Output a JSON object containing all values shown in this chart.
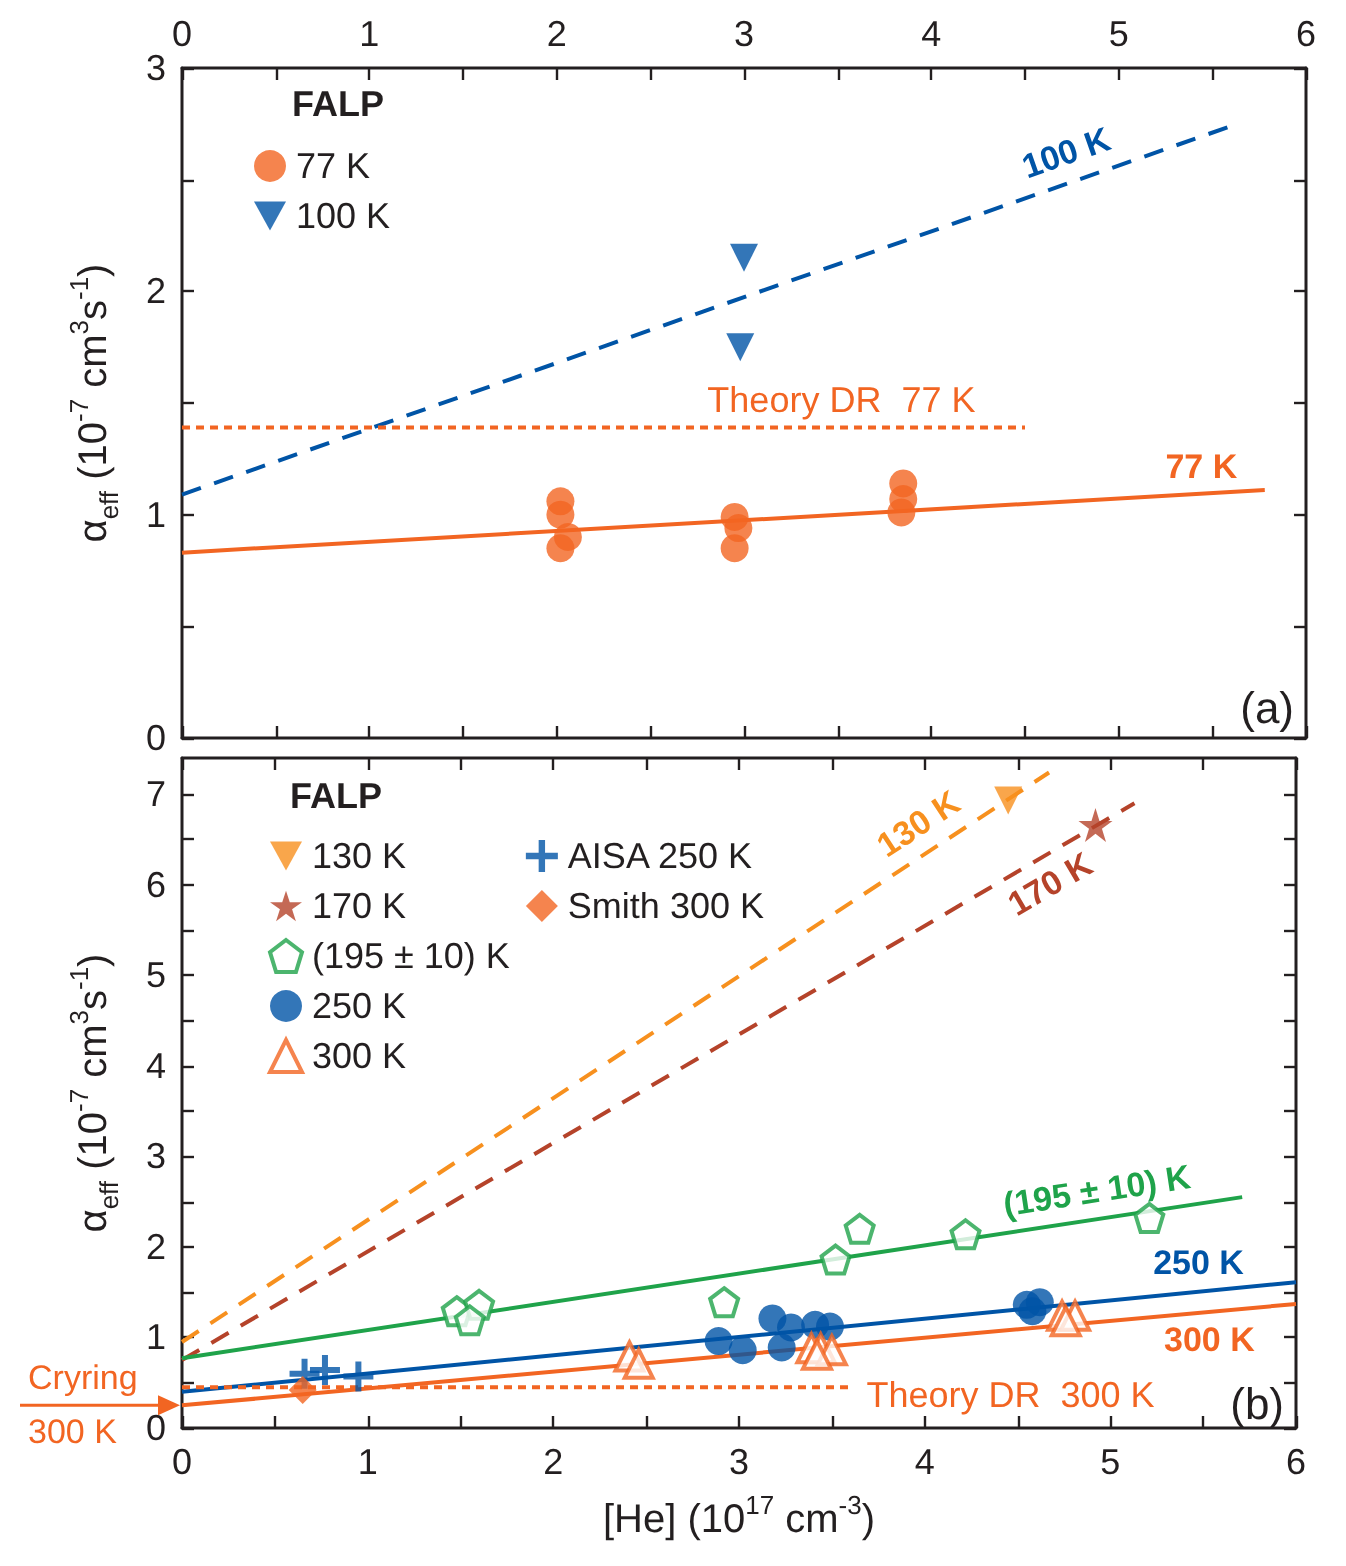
{
  "chart_data": [
    {
      "type": "scatter",
      "ylabel": "α$_{eff}$ (10$^{-7}$ cm$^{3}$s$^{-1}$)",
      "legend_title": "FALP",
      "legend": "top left",
      "tick_labels": "y",
      "xlim": [
        0,
        6
      ],
      "xticks": [
        0,
        {
          "value": 0.5,
          "label": null
        },
        1,
        {
          "value": 1.5,
          "label": null
        },
        2,
        {
          "value": 2.5,
          "label": null
        },
        3,
        {
          "value": 3.5,
          "label": null
        },
        4,
        {
          "value": 4.5,
          "label": null
        },
        5,
        {
          "value": 5.5,
          "label": null
        },
        6
      ],
      "x2lim": [
        0,
        6
      ],
      "x2ticks": [
        0,
        {
          "value": 0.5,
          "label": null
        },
        1,
        {
          "value": 1.5,
          "label": null
        },
        2,
        {
          "value": 2.5,
          "label": null
        },
        3,
        {
          "value": 3.5,
          "label": null
        },
        4,
        {
          "value": 4.5,
          "label": null
        },
        5,
        {
          "value": 5.5,
          "label": null
        },
        6
      ],
      "ylim": [
        0,
        3
      ],
      "yticks": [
        0,
        {
          "value": 0.5,
          "label": null
        },
        1,
        {
          "value": 1.5,
          "label": null
        },
        2,
        {
          "value": 2.5,
          "label": null
        },
        3
      ],
      "annotations": [
        "(a)",
        {
          "text": "Theory DR  77 K",
          "x": 3.52,
          "y": 1.39
        },
        {
          "text": "77 K",
          "x": 5.45,
          "y": 1.09
        },
        {
          "text": "100 K",
          "x": 4.77,
          "y": 2.5
        }
      ],
      "series": [
        {
          "name": "77 K",
          "color": "#f26522",
          "marker": "circle",
          "x": [
            2.02,
            2.02,
            2.06,
            2.02,
            2.95,
            2.97,
            2.95,
            3.85,
            3.85,
            3.84
          ],
          "values": [
            1.06,
            1.0,
            0.9,
            0.85,
            0.99,
            0.94,
            0.85,
            1.14,
            1.07,
            1.01
          ]
        },
        {
          "name": "100 K",
          "color": "#0054a6",
          "marker": "triangle-down",
          "x": [
            3.0,
            2.98
          ],
          "values": [
            2.15,
            1.75
          ]
        },
        {
          "type": "line",
          "color": "#f26522",
          "line_style": "solid",
          "x": [
            0,
            5.78
          ],
          "values": [
            0.83,
            1.11
          ]
        },
        {
          "type": "line",
          "color": "#0054a6",
          "line_style": "dashed",
          "x": [
            0,
            5.6
          ],
          "values": [
            1.09,
            2.74
          ]
        },
        {
          "type": "line",
          "color": "#f26522",
          "line_style": "dotted",
          "x": [
            0,
            4.5
          ],
          "values": [
            1.39,
            1.39
          ]
        }
      ]
    },
    {
      "type": "scatter",
      "xlabel": "[He] (10$^{17}$ cm$^{-3}$)",
      "ylabel": "α$_{eff}$ (10$^{-7}$ cm$^{3}$s$^{-1}$)",
      "legend_title": "FALP",
      "legend": "top left",
      "xlim": [
        0,
        6
      ],
      "xticks": [
        0,
        {
          "value": 0.5,
          "label": null
        },
        1,
        {
          "value": 1.5,
          "label": null
        },
        2,
        {
          "value": 2.5,
          "label": null
        },
        3,
        {
          "value": 3.5,
          "label": null
        },
        4,
        {
          "value": 4.5,
          "label": null
        },
        5,
        {
          "value": 5.5,
          "label": null
        },
        6
      ],
      "ylim": [
        0,
        7.4
      ],
      "yticks": [
        0,
        {
          "value": 0.5,
          "label": null
        },
        1,
        {
          "value": 1.5,
          "label": null
        },
        2,
        {
          "value": 2.5,
          "label": null
        },
        3,
        {
          "value": 3.5,
          "label": null
        },
        4,
        {
          "value": 4.5,
          "label": null
        },
        5,
        {
          "value": 5.5,
          "label": null
        },
        6,
        {
          "value": 6.5,
          "label": null
        },
        7
      ],
      "annotations": [
        "(b)",
        {
          "text": "130 K",
          "x": 4.05,
          "y": 6.41
        },
        {
          "text": "170 K",
          "x": 4.6,
          "y": 6.27
        },
        {
          "text": "(195 ± 10) K",
          "x": 4.95,
          "y": 2.31
        },
        {
          "text": "250 K",
          "x": 5.49,
          "y": 1.51
        },
        {
          "text": "300 K",
          "x": 5.52,
          "y": 1.28
        },
        {
          "text": "Theory DR  300 K",
          "x": 3.6,
          "y": 0.45
        },
        {
          "text": "Cryring 300 K",
          "x": 0,
          "y": 0.25
        }
      ],
      "series": [
        {
          "name": "130 K",
          "color": "#f7901e",
          "marker": "triangle-down",
          "x": [
            4.45
          ],
          "values": [
            6.93
          ]
        },
        {
          "name": "170 K",
          "color": "#b5432a",
          "marker": "star",
          "x": [
            4.92
          ],
          "values": [
            6.66
          ]
        },
        {
          "name": "(195 ± 10) K",
          "color": "#1fa34a",
          "x": [
            1.48,
            1.6,
            1.55,
            2.92,
            3.52,
            3.65,
            4.22,
            5.21
          ],
          "values": [
            1.29,
            1.36,
            1.19,
            1.39,
            1.86,
            2.2,
            2.14,
            2.32
          ]
        },
        {
          "name": "250 K",
          "color": "#0054a6",
          "marker": "circle",
          "x": [
            2.89,
            3.02,
            3.18,
            3.23,
            3.28,
            3.41,
            3.49,
            4.55,
            4.62,
            4.58
          ],
          "values": [
            0.96,
            0.86,
            1.21,
            0.89,
            1.11,
            1.14,
            1.12,
            1.36,
            1.39,
            1.29
          ]
        },
        {
          "name": "300 K",
          "color": "#f26522",
          "marker": "triangle-open",
          "x": [
            2.41,
            2.46,
            3.39,
            3.44,
            3.5,
            3.42,
            4.74,
            4.81,
            4.76
          ],
          "values": [
            0.79,
            0.71,
            0.88,
            0.88,
            0.86,
            0.81,
            1.24,
            1.24,
            1.18
          ]
        },
        {
          "name": "AISA 250 K",
          "color": "#0054a6",
          "marker": "cross",
          "x": [
            0.66,
            0.77,
            0.95
          ],
          "values": [
            0.6,
            0.64,
            0.57
          ]
        },
        {
          "name": "Smith 300 K",
          "color": "#f26522",
          "marker": "diamond",
          "x": [
            0.65
          ],
          "values": [
            0.42
          ]
        },
        {
          "type": "line",
          "color": "#f7901e",
          "line_style": "dashed",
          "x": [
            0,
            4.67
          ],
          "values": [
            0.95,
            7.24
          ]
        },
        {
          "type": "line",
          "color": "#b5432a",
          "line_style": "dashed",
          "x": [
            0,
            5.13
          ],
          "values": [
            0.75,
            6.9
          ]
        },
        {
          "type": "line",
          "color": "#1fa34a",
          "line_style": "solid",
          "x": [
            0,
            5.71
          ],
          "values": [
            0.77,
            2.55
          ]
        },
        {
          "type": "line",
          "color": "#0054a6",
          "line_style": "solid",
          "x": [
            0,
            6
          ],
          "values": [
            0.4,
            1.61
          ]
        },
        {
          "type": "line",
          "color": "#f26522",
          "line_style": "solid",
          "x": [
            0,
            6
          ],
          "values": [
            0.25,
            1.37
          ]
        },
        {
          "type": "line",
          "color": "#f26522",
          "line_style": "dotted",
          "x": [
            0,
            3.6
          ],
          "values": [
            0.45,
            0.45
          ]
        }
      ]
    }
  ]
}
